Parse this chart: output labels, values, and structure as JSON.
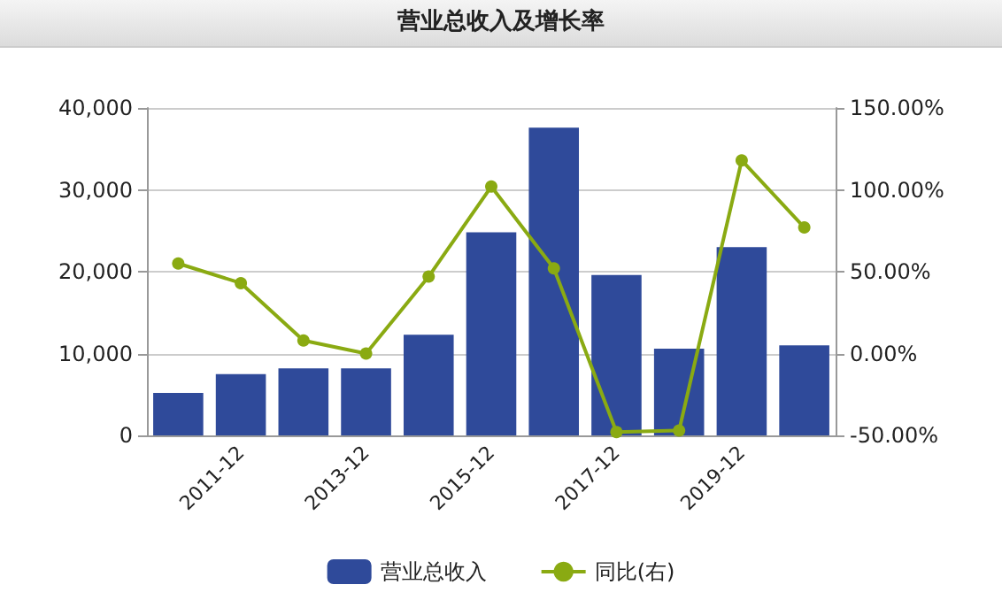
{
  "chart_data": {
    "type": "bar",
    "title": "营业总收入及增长率",
    "categories": [
      null,
      "2011-12",
      null,
      "2013-12",
      null,
      "2015-12",
      null,
      "2017-12",
      null,
      "2019-12",
      null
    ],
    "series": [
      {
        "name": "营业总收入",
        "color": "#2f4a9a",
        "values": [
          5200,
          7500,
          8200,
          8200,
          12300,
          24800,
          37600,
          19600,
          10600,
          23000,
          11000
        ]
      },
      {
        "name": "同比(右)",
        "type": "line",
        "axis": "y2",
        "color": "#8aaa12",
        "marker": "circle",
        "values": [
          55,
          43,
          8,
          0,
          47,
          102,
          52,
          -48,
          -47,
          118,
          77
        ]
      }
    ],
    "ylim": [
      0,
      40000
    ],
    "yticks": [
      {
        "value": 0,
        "label": "0"
      },
      {
        "value": 10000,
        "label": "10,000"
      },
      {
        "value": 20000,
        "label": "20,000"
      },
      {
        "value": 30000,
        "label": "30,000"
      },
      {
        "value": 40000,
        "label": "40,000"
      }
    ],
    "y2lim": [
      -50,
      150
    ],
    "y2ticks": [
      {
        "value": -50,
        "label": "-50.00%"
      },
      {
        "value": 0,
        "label": "0.00%"
      },
      {
        "value": 50,
        "label": "50.00%"
      },
      {
        "value": 100,
        "label": "100.00%"
      },
      {
        "value": 150,
        "label": "150.00%"
      }
    ],
    "grid": "y",
    "legend": "bottom"
  }
}
